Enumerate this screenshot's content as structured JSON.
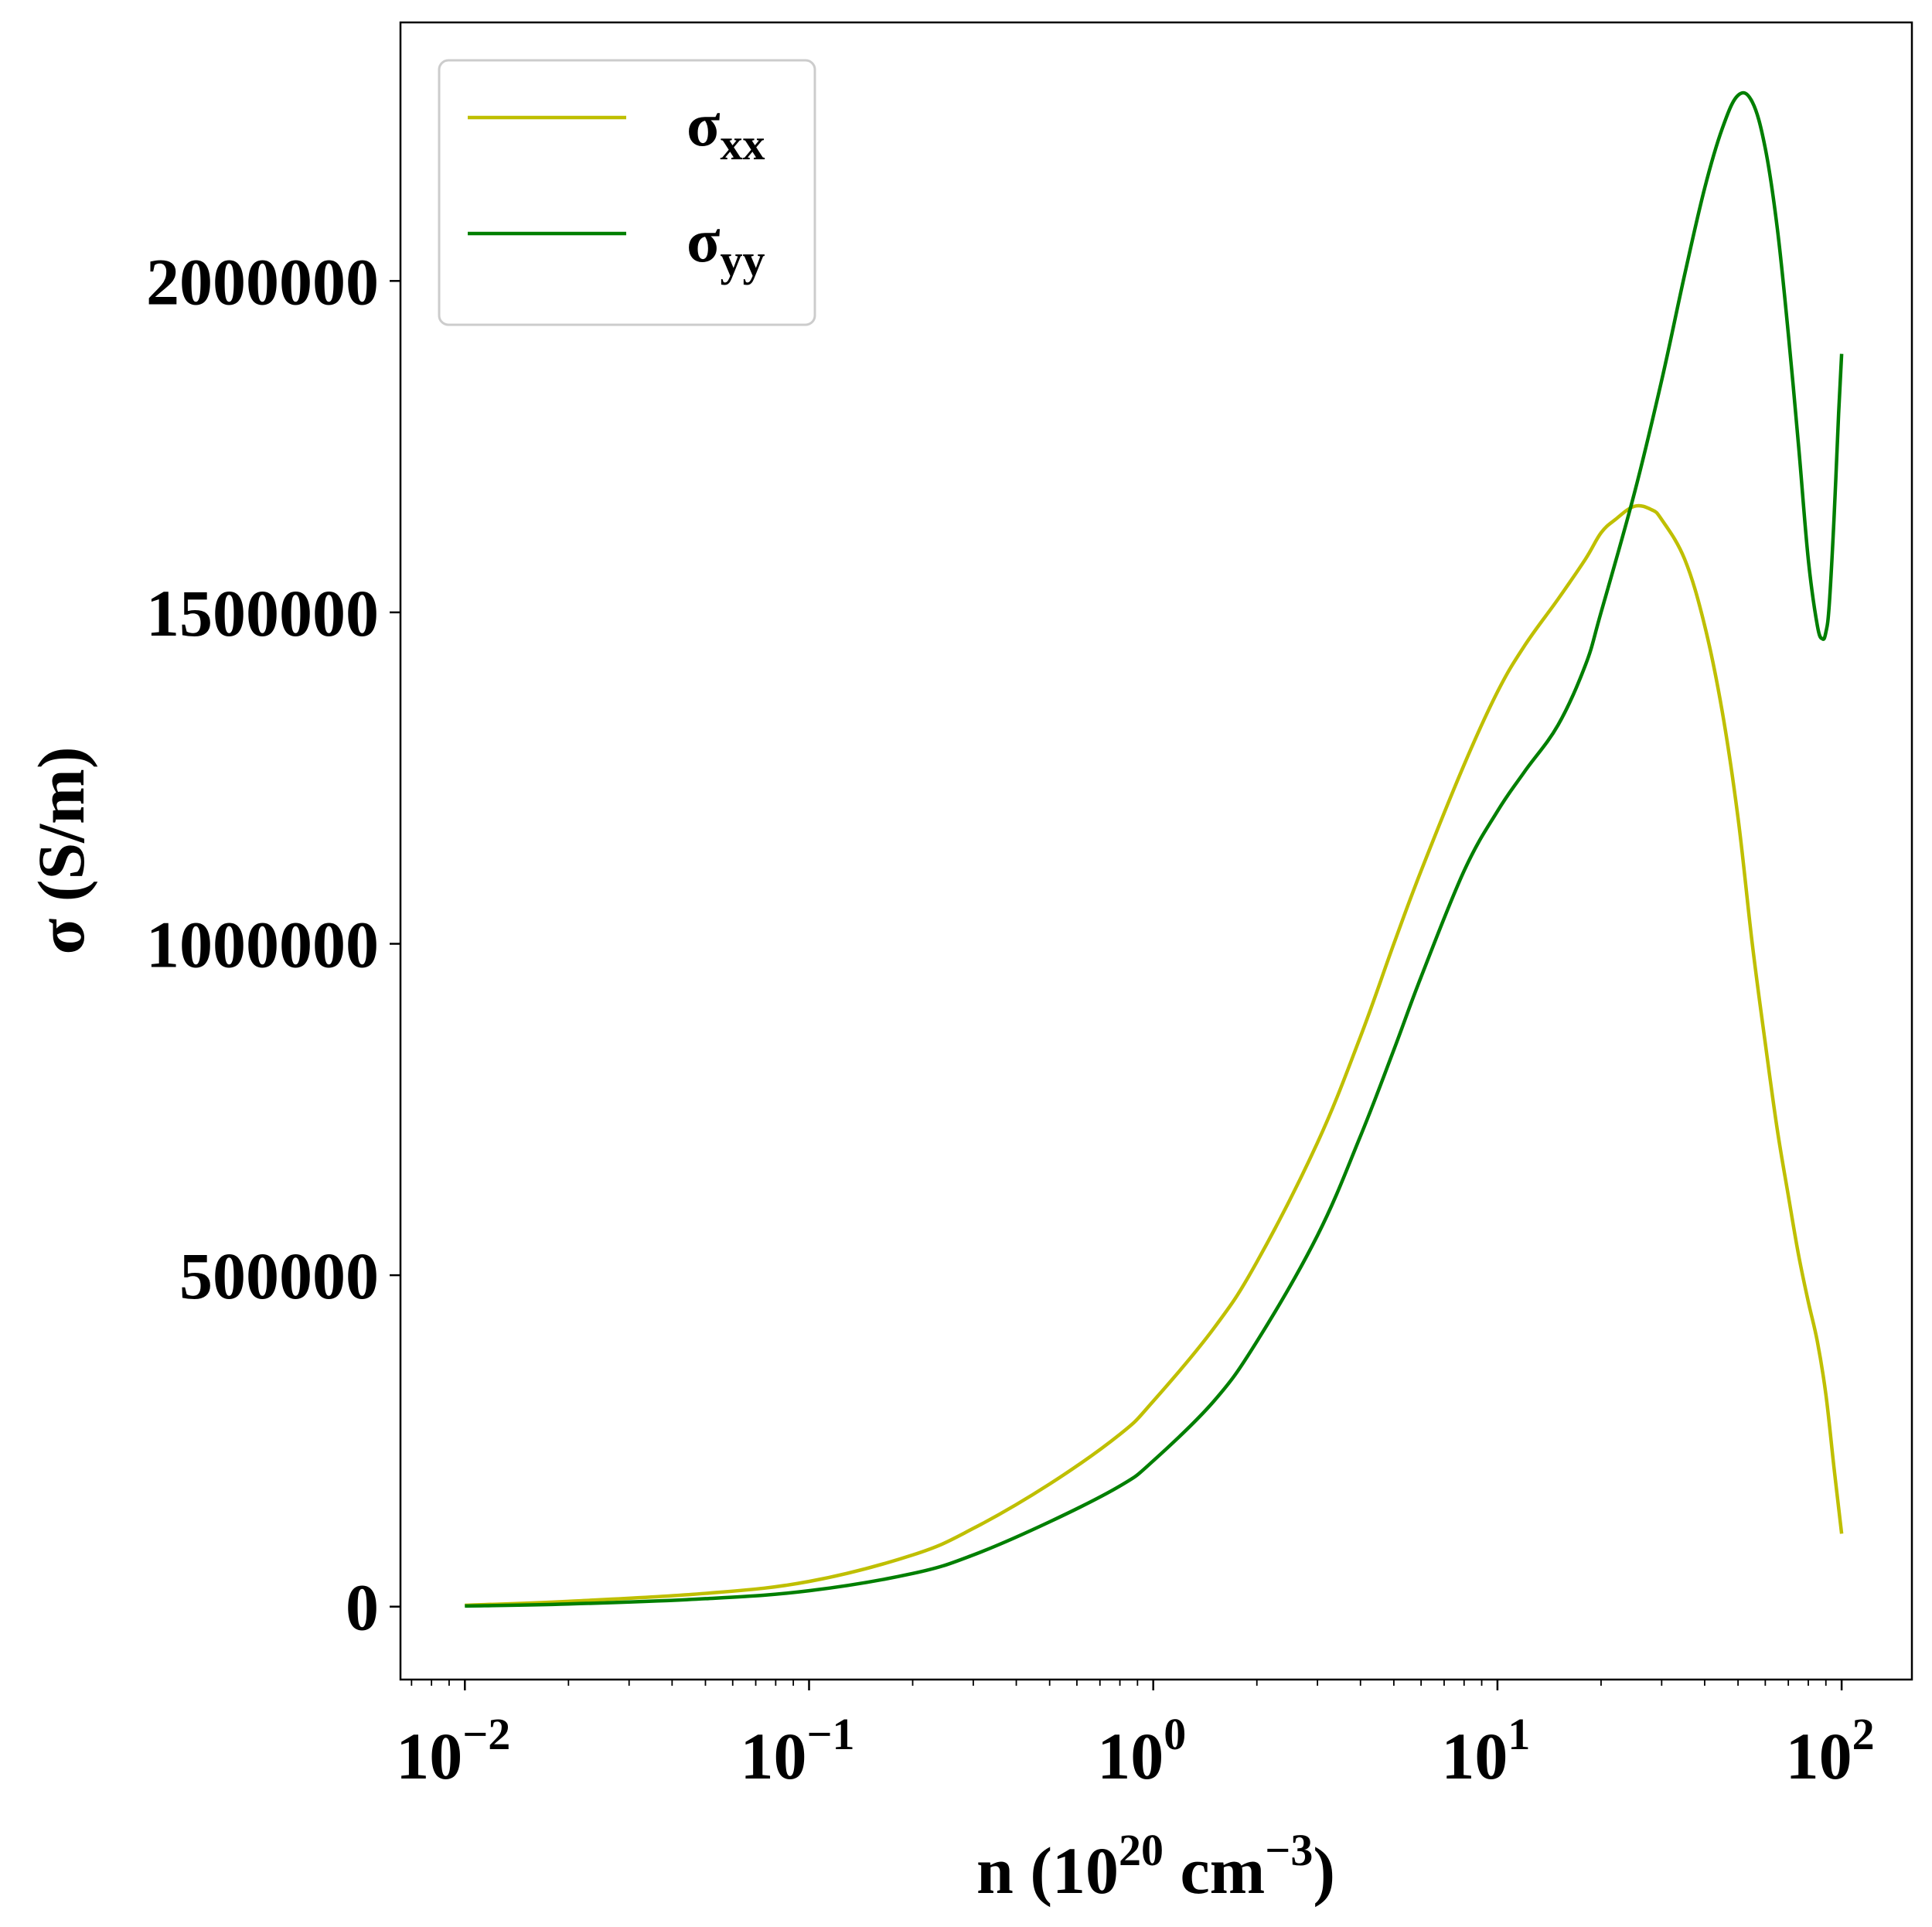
{
  "chart_data": {
    "type": "line",
    "xscale": "log",
    "xlim": [
      0.0065,
      160
    ],
    "ylim": [
      -110000,
      2390000
    ],
    "grid": false,
    "legend_position": "upper-left",
    "xlabel": {
      "main": "n (10",
      "sup1": "20",
      "mid": " cm",
      "sup2": "−3",
      "end": ")"
    },
    "ylabel": "σ (S/m)",
    "x_ticks": [
      {
        "value": 0.01,
        "base": "10",
        "exp": "−2"
      },
      {
        "value": 0.1,
        "base": "10",
        "exp": "−1"
      },
      {
        "value": 1,
        "base": "10",
        "exp": "0"
      },
      {
        "value": 10,
        "base": "10",
        "exp": "1"
      },
      {
        "value": 100,
        "base": "10",
        "exp": "2"
      }
    ],
    "y_ticks": [
      {
        "value": 0,
        "label": "0"
      },
      {
        "value": 500000,
        "label": "500000"
      },
      {
        "value": 1000000,
        "label": "1000000"
      },
      {
        "value": 1500000,
        "label": "1500000"
      },
      {
        "value": 2000000,
        "label": "2000000"
      }
    ],
    "series": [
      {
        "name": "σ",
        "subscript": "xx",
        "color": "#bfbf00",
        "x": [
          0.01,
          0.02,
          0.05,
          0.1,
          0.2,
          0.3,
          0.5,
          0.8,
          1,
          1.5,
          2,
          3,
          4,
          5,
          6,
          8,
          10,
          12,
          15,
          18,
          20,
          22,
          25,
          28,
          30,
          35,
          40,
          45,
          50,
          55,
          60,
          65,
          70,
          75,
          80,
          85,
          90,
          95,
          100
        ],
        "y": [
          2000,
          8000,
          20000,
          38000,
          78000,
          118000,
          185000,
          260000,
          310000,
          420000,
          520000,
          700000,
          860000,
          1000000,
          1110000,
          1270000,
          1380000,
          1450000,
          1520000,
          1580000,
          1620000,
          1640000,
          1660000,
          1655000,
          1640000,
          1580000,
          1480000,
          1350000,
          1190000,
          1000000,
          850000,
          720000,
          620000,
          530000,
          460000,
          400000,
          320000,
          210000,
          110000
        ]
      },
      {
        "name": "σ",
        "subscript": "yy",
        "color": "#007f00",
        "x": [
          0.01,
          0.02,
          0.05,
          0.1,
          0.2,
          0.3,
          0.5,
          0.8,
          1,
          1.5,
          2,
          3,
          4,
          5,
          6,
          8,
          10,
          12,
          15,
          18,
          20,
          25,
          30,
          35,
          40,
          45,
          50,
          55,
          60,
          65,
          70,
          75,
          80,
          85,
          88,
          90,
          92,
          95,
          98,
          100
        ],
        "y": [
          1000,
          4000,
          12000,
          24000,
          50000,
          78000,
          128000,
          182000,
          220000,
          310000,
          400000,
          560000,
          710000,
          840000,
          950000,
          1110000,
          1200000,
          1260000,
          1330000,
          1420000,
          1500000,
          1680000,
          1850000,
          2010000,
          2140000,
          2230000,
          2280000,
          2270000,
          2200000,
          2080000,
          1920000,
          1750000,
          1580000,
          1480000,
          1460000,
          1470000,
          1510000,
          1640000,
          1800000,
          1890000
        ]
      }
    ]
  }
}
